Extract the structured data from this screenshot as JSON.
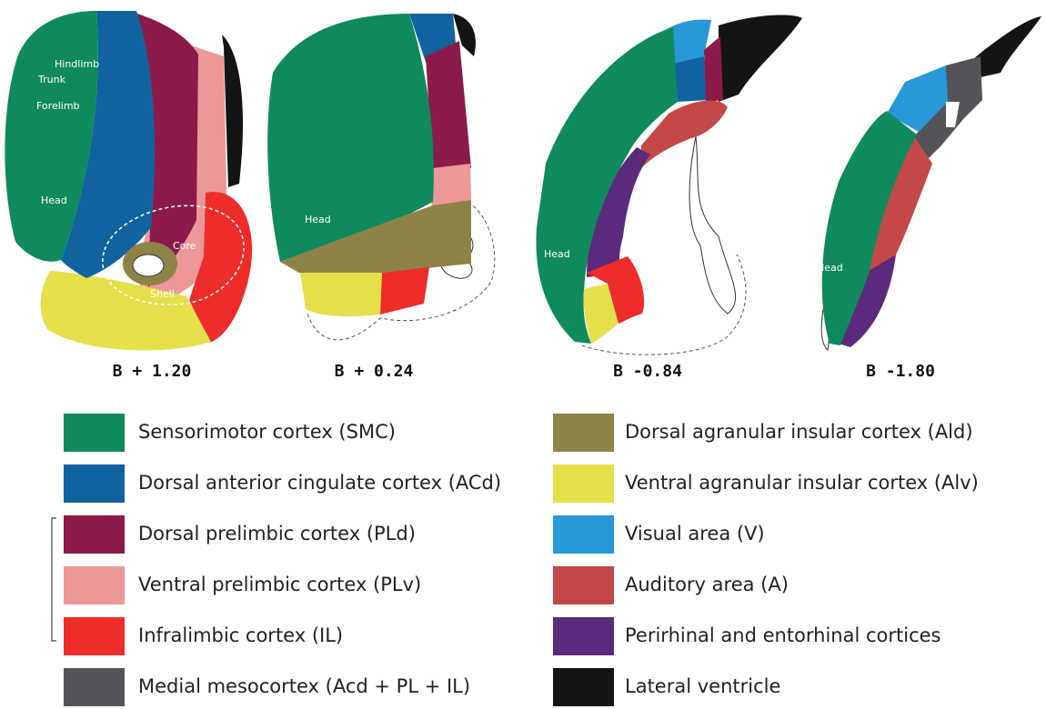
{
  "sections": [
    {
      "label": "B + 1.20",
      "annotations": [
        "Hindlimb",
        "Trunk",
        "Forelimb",
        "Head",
        "Core",
        "Shell"
      ]
    },
    {
      "label": "B + 0.24",
      "annotations": [
        "Head"
      ]
    },
    {
      "label": "B -0.84",
      "annotations": [
        "Head"
      ]
    },
    {
      "label": "B -1.80",
      "annotations": [
        "Head"
      ]
    }
  ],
  "legend": [
    {
      "label": "Sensorimotor cortex (SMC)",
      "color": "#0f8a5c"
    },
    {
      "label": "Dorsal anterior cingulate cortex (ACd)",
      "color": "#1163a0"
    },
    {
      "label": "Dorsal prelimbic cortex (PLd)",
      "color": "#8b1a4a"
    },
    {
      "label": "Ventral prelimbic cortex (PLv)",
      "color": "#ec9898"
    },
    {
      "label": "Infralimbic cortex (IL)",
      "color": "#ee2c2a"
    },
    {
      "label": "Medial mesocortex (Acd + PL + IL)",
      "color": "#545358"
    },
    {
      "label": "Dorsal agranular insular cortex (Ald)",
      "color": "#8d8347"
    },
    {
      "label": "Ventral agranular insular cortex (Alv)",
      "color": "#e4e04a"
    },
    {
      "label": "Visual area (V)",
      "color": "#2898d8"
    },
    {
      "label": "Auditory area (A)",
      "color": "#c44848"
    },
    {
      "label": "Perirhinal and entorhinal cortices",
      "color": "#5c2a7c"
    },
    {
      "label": "Lateral ventricle",
      "color": "#141414"
    }
  ]
}
